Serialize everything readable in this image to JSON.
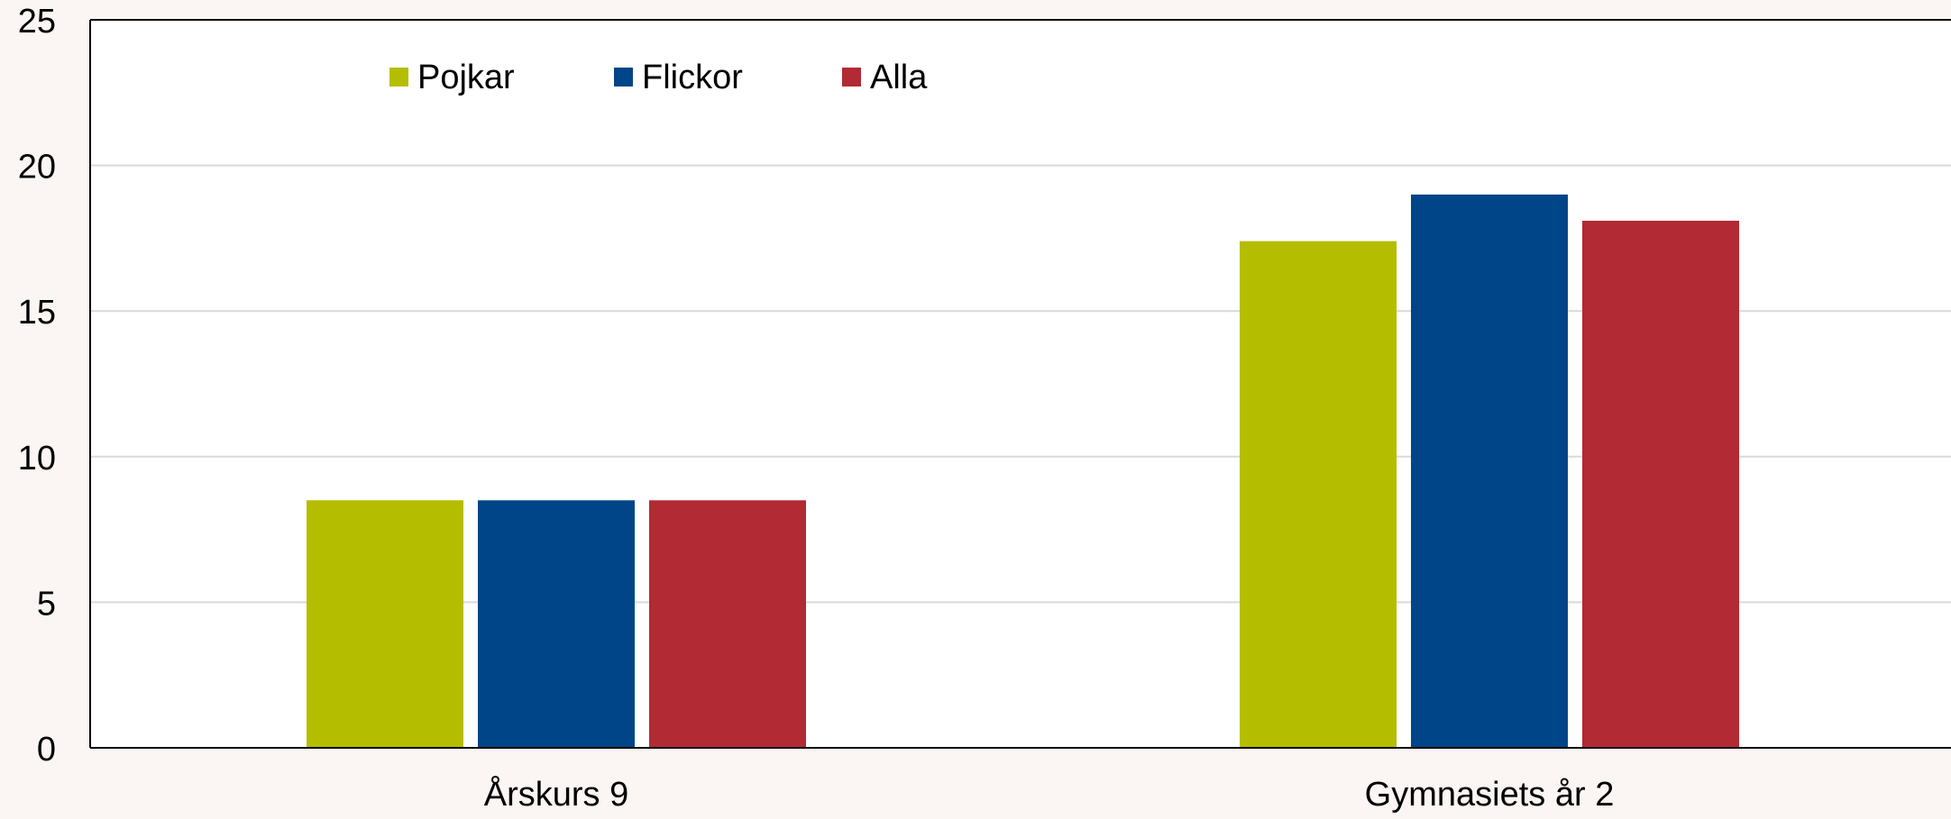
{
  "chart_data": {
    "type": "bar",
    "title": "",
    "xlabel": "",
    "ylabel": "",
    "ylim": [
      0,
      25
    ],
    "yticks": [
      0,
      5,
      10,
      15,
      20,
      25
    ],
    "grid": true,
    "legend_position": "top-left",
    "categories": [
      "Årskurs 9",
      "Gymnasiets år 2"
    ],
    "series": [
      {
        "name": "Pojkar",
        "color": "#b5bd00",
        "values": [
          8.5,
          17.4
        ]
      },
      {
        "name": "Flickor",
        "color": "#004587",
        "values": [
          8.5,
          19.0
        ]
      },
      {
        "name": "Alla",
        "color": "#b22a33",
        "values": [
          8.5,
          18.1
        ]
      }
    ]
  }
}
